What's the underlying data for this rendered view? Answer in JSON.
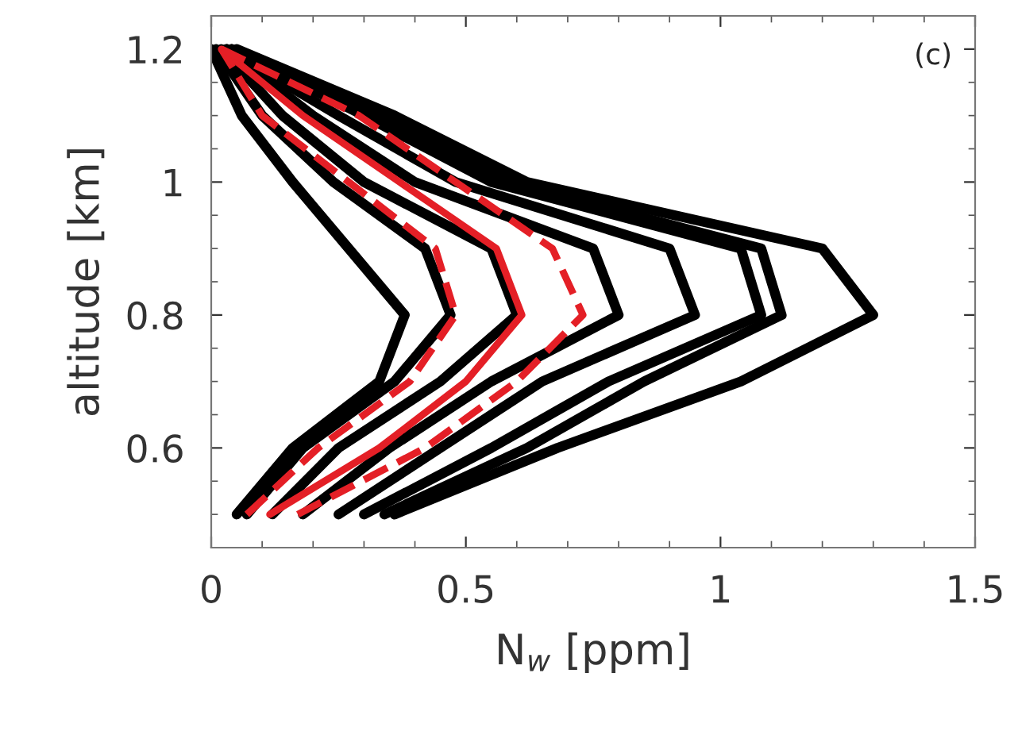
{
  "chart_data": {
    "type": "line",
    "xlabel": "N$_{w}$ [ppm]",
    "ylabel": "altitude [km]",
    "annotations": [
      "(c)"
    ],
    "xlim": [
      0,
      1.5
    ],
    "ylim": [
      0.45,
      1.25
    ],
    "xticks": [
      0,
      0.5,
      {
        "value": 1,
        "label": "1"
      },
      1.5
    ],
    "yticks": [
      0.6,
      0.8,
      {
        "value": 1,
        "label": "1"
      },
      1.2
    ],
    "grid": false,
    "legend": false,
    "marker": "none",
    "series": [
      {
        "color": "#000000",
        "line_style": "solid",
        "x": [
          0.36,
          0.68,
          1.04,
          1.3,
          1.2,
          0.62,
          0.36,
          0.05
        ],
        "values": [
          0.5,
          0.6,
          0.7,
          0.8,
          0.9,
          1.0,
          1.1,
          1.2
        ]
      },
      {
        "color": "#000000",
        "line_style": "solid",
        "x": [
          0.34,
          0.62,
          0.85,
          1.12,
          1.08,
          0.58,
          0.33,
          0.04
        ],
        "values": [
          0.5,
          0.6,
          0.7,
          0.8,
          0.9,
          1.0,
          1.1,
          1.2
        ]
      },
      {
        "color": "#000000",
        "line_style": "solid",
        "x": [
          0.3,
          0.55,
          0.78,
          1.08,
          1.04,
          0.55,
          0.3,
          0.04
        ],
        "values": [
          0.5,
          0.6,
          0.7,
          0.8,
          0.9,
          1.0,
          1.1,
          1.2
        ]
      },
      {
        "color": "#000000",
        "line_style": "solid",
        "x": [
          0.25,
          0.45,
          0.65,
          0.95,
          0.9,
          0.48,
          0.25,
          0.03
        ],
        "values": [
          0.5,
          0.6,
          0.7,
          0.8,
          0.9,
          1.0,
          1.1,
          1.2
        ]
      },
      {
        "color": "#000000",
        "line_style": "solid",
        "x": [
          0.18,
          0.35,
          0.55,
          0.8,
          0.75,
          0.4,
          0.2,
          0.03
        ],
        "values": [
          0.5,
          0.6,
          0.7,
          0.8,
          0.9,
          1.0,
          1.1,
          1.2
        ]
      },
      {
        "color": "#000000",
        "line_style": "solid",
        "x": [
          0.12,
          0.25,
          0.45,
          0.6,
          0.55,
          0.3,
          0.14,
          0.02
        ],
        "values": [
          0.5,
          0.6,
          0.7,
          0.8,
          0.9,
          1.0,
          1.1,
          1.2
        ]
      },
      {
        "color": "#000000",
        "line_style": "solid",
        "x": [
          0.07,
          0.18,
          0.36,
          0.47,
          0.42,
          0.24,
          0.1,
          0.01
        ],
        "values": [
          0.5,
          0.6,
          0.7,
          0.8,
          0.9,
          1.0,
          1.1,
          1.2
        ]
      },
      {
        "color": "#000000",
        "line_style": "solid",
        "x": [
          0.05,
          0.16,
          0.33,
          0.38,
          0.27,
          0.16,
          0.06,
          0.0
        ],
        "values": [
          0.5,
          0.6,
          0.7,
          0.8,
          0.9,
          1.0,
          1.1,
          1.2
        ]
      },
      {
        "color": "#e41f26",
        "line_style": "solid",
        "x": [
          0.115,
          0.33,
          0.5,
          0.61,
          0.56,
          0.37,
          0.18,
          0.02
        ],
        "values": [
          0.5,
          0.6,
          0.7,
          0.8,
          0.9,
          1.0,
          1.1,
          1.2
        ]
      },
      {
        "color": "#e41f26",
        "line_style": "dashed",
        "x": [
          0.07,
          0.21,
          0.39,
          0.48,
          0.44,
          0.27,
          0.1,
          0.02
        ],
        "values": [
          0.5,
          0.6,
          0.7,
          0.8,
          0.9,
          1.0,
          1.1,
          1.2
        ]
      },
      {
        "color": "#e41f26",
        "line_style": "dashed",
        "x": [
          0.17,
          0.42,
          0.6,
          0.73,
          0.67,
          0.48,
          0.29,
          0.02
        ],
        "values": [
          0.5,
          0.6,
          0.7,
          0.8,
          0.9,
          1.0,
          1.1,
          1.2
        ]
      }
    ]
  }
}
